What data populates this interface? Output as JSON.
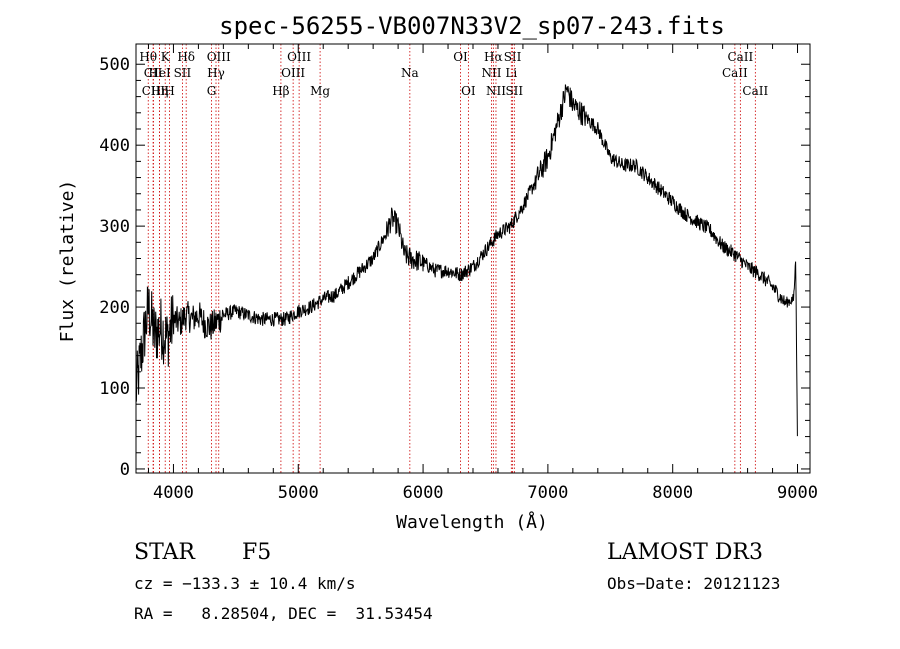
{
  "chart_data": {
    "type": "line",
    "title": "spec-56255-VB007N33V2_sp07-243.fits",
    "xlabel": "Wavelength (Å)",
    "ylabel": "Flux (relative)",
    "xlim": [
      3700,
      9100
    ],
    "ylim": [
      -5,
      525
    ],
    "xticks": [
      4000,
      5000,
      6000,
      7000,
      8000,
      9000
    ],
    "yticks": [
      0,
      100,
      200,
      300,
      400,
      500
    ],
    "series": [
      {
        "name": "spectrum",
        "anchors_x": [
          3700,
          3750,
          3800,
          3850,
          3900,
          3950,
          4000,
          4050,
          4100,
          4150,
          4200,
          4250,
          4300,
          4400,
          4500,
          4600,
          4700,
          4800,
          4900,
          5000,
          5100,
          5200,
          5300,
          5400,
          5500,
          5600,
          5700,
          5750,
          5800,
          5850,
          5900,
          6000,
          6100,
          6200,
          6300,
          6400,
          6500,
          6600,
          6700,
          6800,
          6900,
          7000,
          7100,
          7150,
          7200,
          7300,
          7400,
          7500,
          7600,
          7700,
          7800,
          7900,
          8000,
          8100,
          8200,
          8300,
          8400,
          8500,
          8600,
          8700,
          8800,
          8900,
          8970,
          8985,
          9000
        ],
        "anchors_y": [
          95,
          150,
          200,
          165,
          175,
          160,
          185,
          180,
          190,
          185,
          190,
          180,
          175,
          190,
          195,
          190,
          185,
          185,
          185,
          195,
          200,
          210,
          215,
          230,
          245,
          260,
          290,
          310,
          300,
          265,
          260,
          255,
          245,
          245,
          240,
          250,
          270,
          290,
          300,
          325,
          355,
          385,
          440,
          470,
          450,
          435,
          420,
          385,
          375,
          375,
          360,
          345,
          330,
          315,
          305,
          295,
          275,
          265,
          250,
          240,
          225,
          205,
          210,
          260,
          30
        ]
      }
    ],
    "line_markers": [
      {
        "label": "Hθ",
        "x": 3798,
        "row": 1
      },
      {
        "label": "CII",
        "x": 3837,
        "row": 2
      },
      {
        "label": "CIII",
        "x": 3840,
        "row": 3
      },
      {
        "label": "Hη",
        "x": 3889,
        "row": 3
      },
      {
        "label": "HeI",
        "x": 3889,
        "row": 2
      },
      {
        "label": "K",
        "x": 3934,
        "row": 1
      },
      {
        "label": "H",
        "x": 3969,
        "row": 3
      },
      {
        "label": "SII",
        "x": 4072,
        "row": 2
      },
      {
        "label": "Hδ",
        "x": 4102,
        "row": 1
      },
      {
        "label": "G",
        "x": 4305,
        "row": 3
      },
      {
        "label": "Hγ",
        "x": 4341,
        "row": 2
      },
      {
        "label": "OIII",
        "x": 4363,
        "row": 1
      },
      {
        "label": "Hβ",
        "x": 4861,
        "row": 3
      },
      {
        "label": "OIII",
        "x": 4959,
        "row": 2
      },
      {
        "label": "OIII",
        "x": 5007,
        "row": 1
      },
      {
        "label": "Mg",
        "x": 5175,
        "row": 3
      },
      {
        "label": "Na",
        "x": 5894,
        "row": 2
      },
      {
        "label": "OI",
        "x": 6300,
        "row": 1
      },
      {
        "label": "OI",
        "x": 6363,
        "row": 3
      },
      {
        "label": "NII",
        "x": 6548,
        "row": 2
      },
      {
        "label": "Hα",
        "x": 6563,
        "row": 1
      },
      {
        "label": "NII",
        "x": 6584,
        "row": 3
      },
      {
        "label": "Li",
        "x": 6707,
        "row": 2
      },
      {
        "label": "SII",
        "x": 6717,
        "row": 1
      },
      {
        "label": "SII",
        "x": 6731,
        "row": 3
      },
      {
        "label": "CaII",
        "x": 8498,
        "row": 2
      },
      {
        "label": "CaII",
        "x": 8542,
        "row": 1
      },
      {
        "label": "CaII",
        "x": 8662,
        "row": 3
      }
    ]
  },
  "info": {
    "object_class": "STAR",
    "subclass": "F5",
    "survey": "LAMOST DR3",
    "cz": "cz = −133.3 ± 10.4 km/s",
    "obs_date": "Obs−Date: 20121123",
    "coords": "RA =   8.28504, DEC =  31.53454"
  },
  "colors": {
    "line": "#000000",
    "marker": "#cc0000"
  }
}
